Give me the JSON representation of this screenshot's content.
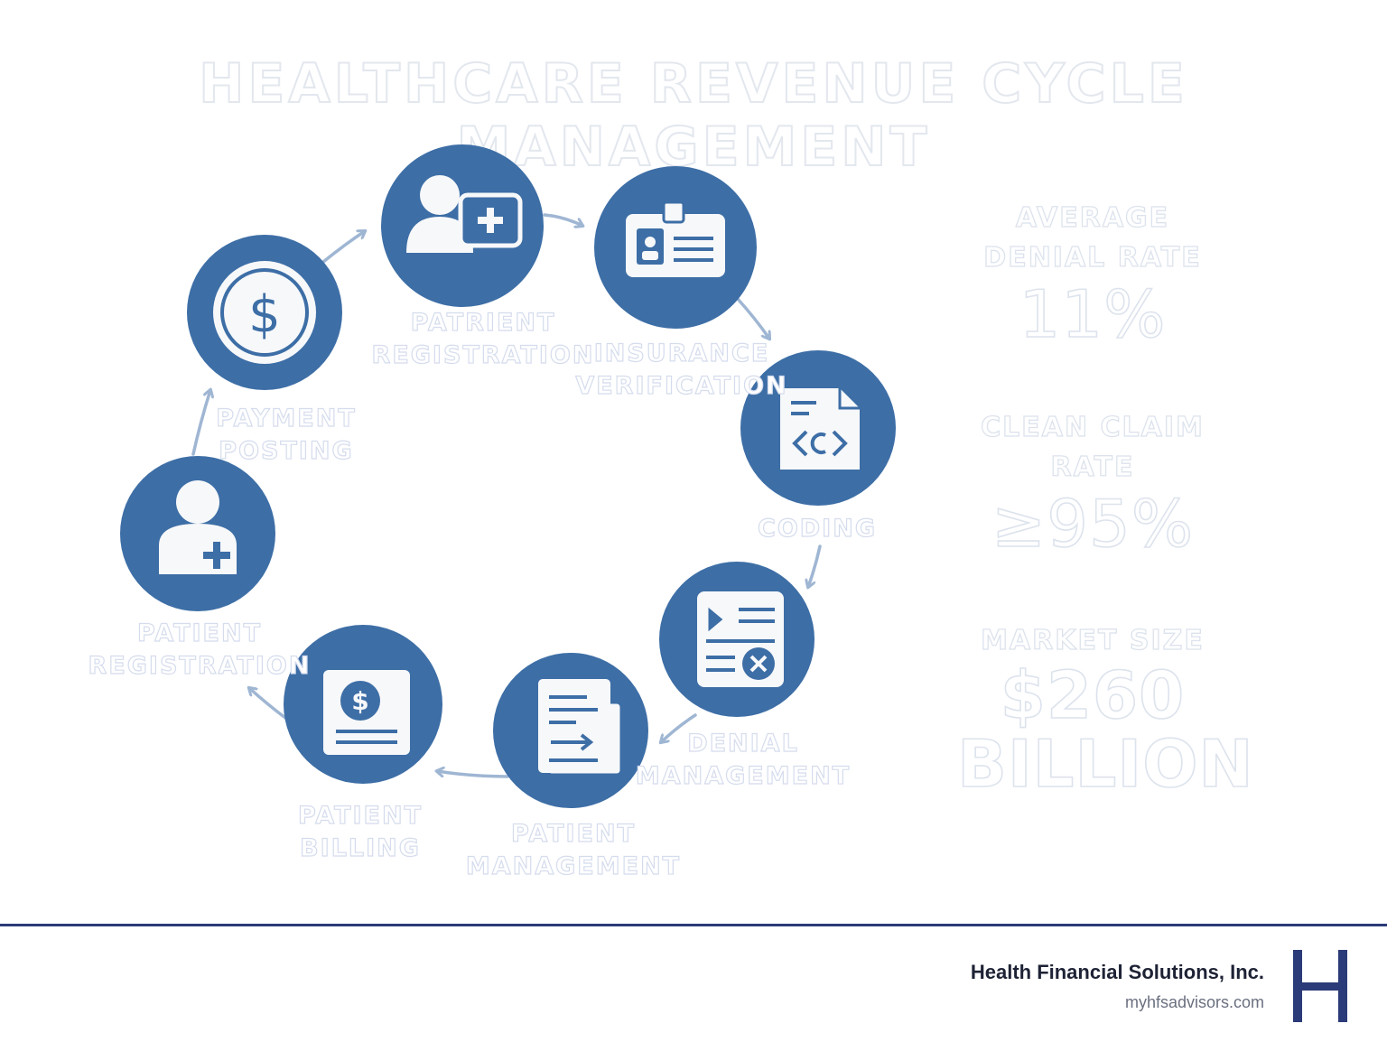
{
  "title": "HEALTHCARE REVENUE CYCLE MANAGEMENT",
  "steps": [
    {
      "line1": "PATRIENT",
      "line2": "REGISTRATION",
      "icon": "patient-plus-icon"
    },
    {
      "line1": "INSURANCE",
      "line2": "VERIFICATION",
      "icon": "id-card-icon"
    },
    {
      "line1": "CODING",
      "line2": "",
      "icon": "code-document-icon"
    },
    {
      "line1": "DENIAL",
      "line2": "MANAGEMENT",
      "icon": "denied-form-icon"
    },
    {
      "line1": "PATIENT",
      "line2": "MANAGEMENT",
      "icon": "documents-arrow-icon"
    },
    {
      "line1": "PATIENT",
      "line2": "BILLING",
      "icon": "invoice-dollar-icon"
    },
    {
      "line1": "PATIENT",
      "line2": "REGISTRATION",
      "icon": "patient-plus-icon"
    },
    {
      "line1": "PAYMENT",
      "line2": "POSTING",
      "icon": "dollar-coin-icon"
    }
  ],
  "stats": {
    "denial": {
      "line1": "AVERAGE",
      "line2": "DENIAL RATE",
      "value": "11%"
    },
    "clean": {
      "line1": "CLEAN CLAIM",
      "line2": "RATE",
      "value": "≥95%"
    },
    "market": {
      "line1": "MARKET SIZE",
      "value": "$260",
      "unit": "BILLION"
    }
  },
  "footer": {
    "company": "Health Financial Solutions, Inc.",
    "url": "myhfsadvisors.com",
    "logo_letter": "H"
  },
  "colors": {
    "circle": "#3d6ea6",
    "arrow": "#9fb6d3",
    "icon_fill": "#f7f8fa",
    "accent": "#2b3a78"
  }
}
